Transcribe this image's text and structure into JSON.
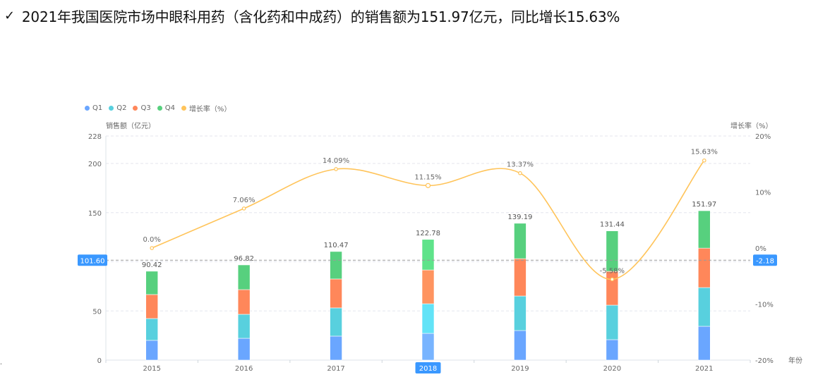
{
  "headline": {
    "check_icon": "✓",
    "text": "2021年我国医院市场中眼科用药（含化药和中成药）的销售额为151.97亿元，同比增长15.63%"
  },
  "legend": [
    {
      "label": "Q1",
      "color": "#6aa6ff"
    },
    {
      "label": "Q2",
      "color": "#58d0de"
    },
    {
      "label": "Q3",
      "color": "#ff875a"
    },
    {
      "label": "Q4",
      "color": "#57d07e"
    },
    {
      "label": "增长率（%）",
      "color": "#ffc45a"
    }
  ],
  "axes": {
    "left_title": "销售额（亿元）",
    "right_title": "增长率（%）",
    "x_title": "年份",
    "left_ticks": [
      "228",
      "200",
      "150",
      "100",
      "50",
      "0"
    ],
    "right_ticks": [
      "20%",
      "10%",
      "0%",
      "-10%",
      "-20%"
    ]
  },
  "crosshair": {
    "left_value": "101.60",
    "right_value": "-2.18",
    "x_value": "2018",
    "color": "#3a98ff"
  },
  "chart_data": {
    "type": "bar",
    "title": "2021年我国医院市场中眼科用药（含化药和中成药）的销售额为151.97亿元，同比增长15.63%",
    "xlabel": "年份",
    "ylabel": "销售额（亿元）",
    "y2label": "增长率（%）",
    "categories": [
      "2015",
      "2016",
      "2017",
      "2018",
      "2019",
      "2020",
      "2021"
    ],
    "ylim": [
      0,
      228
    ],
    "y2lim": [
      -20,
      20
    ],
    "stacked": true,
    "series": [
      {
        "name": "Q1",
        "type": "bar",
        "color": "#6aa6ff",
        "values": [
          20.1,
          22.2,
          24.4,
          27.2,
          30.1,
          20.8,
          34.4
        ]
      },
      {
        "name": "Q2",
        "type": "bar",
        "color": "#58d0de",
        "values": [
          22.2,
          24.4,
          28.7,
          30.1,
          35.1,
          35.1,
          39.4
        ]
      },
      {
        "name": "Q3",
        "type": "bar",
        "color": "#ff875a",
        "values": [
          24.4,
          25.1,
          29.4,
          34.4,
          38.0,
          34.4,
          40.1
        ]
      },
      {
        "name": "Q4",
        "type": "bar",
        "color": "#57d07e",
        "values": [
          23.72,
          25.12,
          27.97,
          31.08,
          35.99,
          41.14,
          38.07
        ]
      },
      {
        "name": "增长率（%）",
        "type": "line",
        "axis": "right",
        "smooth": true,
        "color": "#ffc45a",
        "values": [
          0.0,
          7.06,
          14.09,
          11.15,
          13.37,
          -5.58,
          15.63
        ]
      }
    ],
    "totals": [
      90.42,
      96.82,
      110.47,
      122.78,
      139.19,
      131.44,
      151.97
    ],
    "total_labels": [
      "90.42",
      "96.82",
      "110.47",
      "122.78",
      "139.19",
      "131.44",
      "151.97"
    ],
    "growth_labels": [
      "0.0%",
      "7.06%",
      "14.09%",
      "11.15%",
      "13.37%",
      "-5.58%",
      "15.63%"
    ],
    "highlighted_category": "2018",
    "legend_position": "top-left",
    "grid": true
  }
}
